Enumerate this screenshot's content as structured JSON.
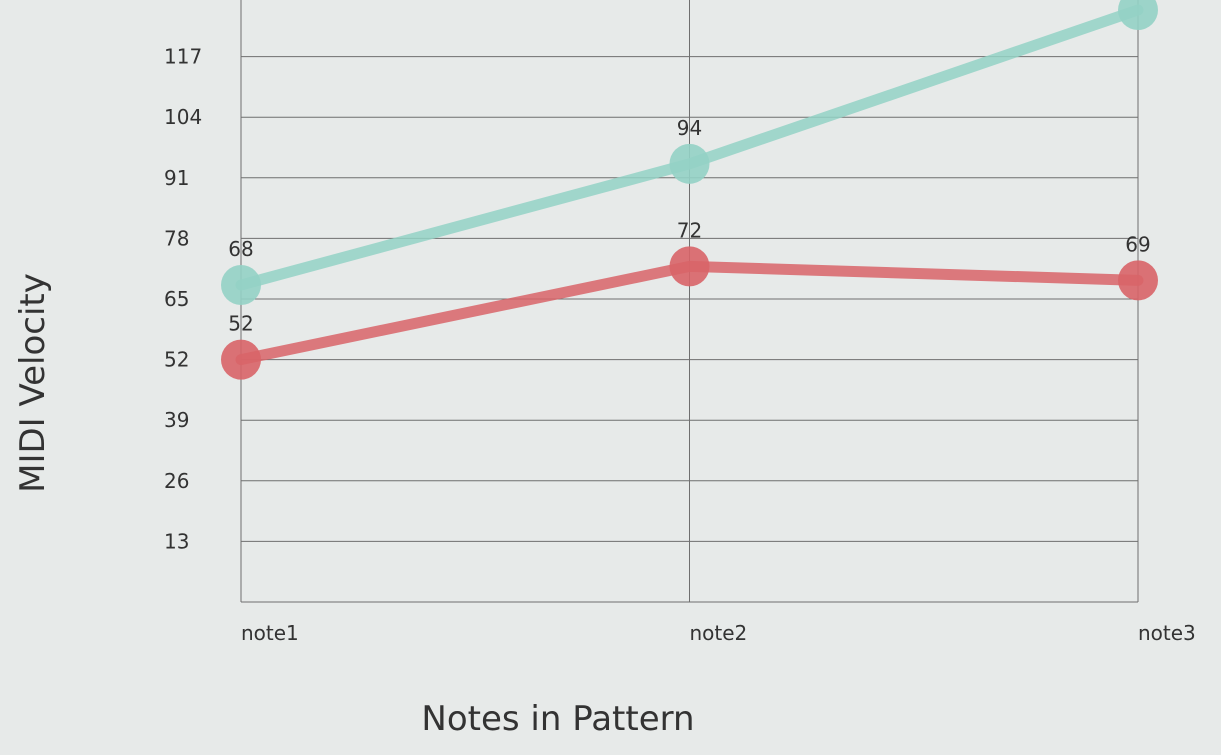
{
  "chart_data": {
    "type": "line",
    "title": "",
    "xlabel": "Notes in Pattern",
    "ylabel": "MIDI Velocity",
    "categories": [
      "note1",
      "note2",
      "note3"
    ],
    "yticks": [
      13,
      26,
      39,
      52,
      65,
      78,
      91,
      104,
      117
    ],
    "ylim": [
      0,
      130
    ],
    "grid": true,
    "series": [
      {
        "values": [
          68,
          94,
          127
        ],
        "color": "#93d2c5",
        "data_labels": [
          "68",
          "94",
          ""
        ]
      },
      {
        "values": [
          52,
          72,
          69
        ],
        "color": "#d86468",
        "data_labels": [
          "52",
          "72",
          "69"
        ]
      }
    ]
  }
}
